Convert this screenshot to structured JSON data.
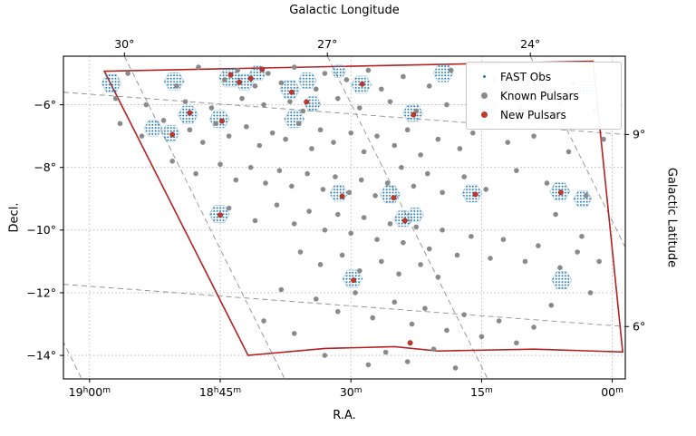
{
  "figure": {
    "top_axis_label": "Galactic Longitude",
    "right_axis_label": "Galactic Latitude",
    "x_axis_label": "R.A.",
    "y_axis_label": "Decl."
  },
  "chart_data": {
    "type": "scatter",
    "title": "",
    "xlabel": "R.A.",
    "ylabel": "Decl.",
    "top_axis_label": "Galactic Longitude",
    "right_axis_label": "Galactic Latitude",
    "x_unit": "RA minutes relative to 18h00m, axis reversed (19h00m on left, 18h00m on right)",
    "y_unit": "Declination degrees",
    "xlim": [
      63,
      -1.5
    ],
    "ylim": [
      -14.75,
      -4.45
    ],
    "grid": "dotted equatorial grid plus dashed galactic coordinate grid",
    "legend_position": "upper right",
    "x_ticks": [
      {
        "value": 60,
        "label": "19h00m"
      },
      {
        "value": 45,
        "label": "18h45m"
      },
      {
        "value": 30,
        "label": "30m"
      },
      {
        "value": 15,
        "label": "15m"
      },
      {
        "value": 0,
        "label": "00m"
      }
    ],
    "y_ticks": [
      {
        "value": -6,
        "label": "−6°"
      },
      {
        "value": -8,
        "label": "−8°"
      },
      {
        "value": -10,
        "label": "−10°"
      },
      {
        "value": -12,
        "label": "−12°"
      },
      {
        "value": -14,
        "label": "−14°"
      }
    ],
    "top_ticks": [
      {
        "value": 56,
        "label": "30°"
      },
      {
        "value": 32.7,
        "label": "27°"
      },
      {
        "value": 9.4,
        "label": "24°"
      }
    ],
    "right_ticks": [
      {
        "value": -6.95,
        "label": "9°"
      },
      {
        "value": -13.08,
        "label": "6°"
      }
    ],
    "legend": [
      {
        "label": "FAST Obs",
        "color": "#1f77b4",
        "size": 3
      },
      {
        "label": "Known Pulsars",
        "color": "#8a8a8a",
        "size": 7
      },
      {
        "label": "New Pulsars",
        "color": "#c0392b",
        "size": 7
      }
    ],
    "colors": {
      "fast_obs": "#1f77b4",
      "known_pulsars": "#8a8a8a",
      "new_pulsars": "#c0392b",
      "survey_boundary": "#b22222",
      "equatorial_grid": "#b0b0b0",
      "galactic_grid": "#8f8f8f"
    },
    "galactic_longitude_lines": [
      {
        "l": 33,
        "p": [
          [
            79.3,
            -4.45
          ],
          [
            60.9,
            -14.75
          ]
        ]
      },
      {
        "l": 30,
        "p": [
          [
            56.0,
            -4.45
          ],
          [
            37.6,
            -14.75
          ]
        ]
      },
      {
        "l": 27,
        "p": [
          [
            32.7,
            -4.45
          ],
          [
            14.3,
            -14.75
          ]
        ]
      },
      {
        "l": 24,
        "p": [
          [
            9.4,
            -4.45
          ],
          [
            -9.0,
            -14.75
          ]
        ]
      }
    ],
    "galactic_latitude_lines": [
      {
        "b": 9,
        "p": [
          [
            63,
            -5.6
          ],
          [
            -1.5,
            -6.95
          ]
        ]
      },
      {
        "b": 6,
        "p": [
          [
            63,
            -11.73
          ],
          [
            -1.5,
            -13.08
          ]
        ]
      }
    ],
    "survey_boundary": [
      [
        58.3,
        -4.93
      ],
      [
        2.2,
        -4.61
      ],
      [
        -1.2,
        -13.89
      ],
      [
        9.0,
        -13.8
      ],
      [
        20.0,
        -13.86
      ],
      [
        25.0,
        -13.72
      ],
      [
        33.0,
        -13.78
      ],
      [
        41.8,
        -14.0
      ]
    ],
    "fast_obs": [
      [
        57.5,
        -5.31,
        11
      ],
      [
        50.3,
        -5.25,
        11
      ],
      [
        43.9,
        -5.13,
        12
      ],
      [
        42.2,
        -5.28,
        10
      ],
      [
        40.7,
        -4.99,
        9
      ],
      [
        37.0,
        -5.51,
        11
      ],
      [
        35.0,
        -5.22,
        10
      ],
      [
        31.4,
        -4.93,
        8
      ],
      [
        28.8,
        -5.36,
        11
      ],
      [
        19.4,
        -4.99,
        11
      ],
      [
        12.0,
        -5.34,
        9
      ],
      [
        2.9,
        -5.48,
        11
      ],
      [
        48.7,
        -6.32,
        11
      ],
      [
        45.1,
        -6.46,
        11
      ],
      [
        52.7,
        -6.75,
        10
      ],
      [
        50.7,
        -6.9,
        10
      ],
      [
        36.5,
        -6.46,
        11
      ],
      [
        34.4,
        -5.97,
        9
      ],
      [
        22.9,
        -6.26,
        11
      ],
      [
        14.1,
        -6.06,
        9
      ],
      [
        45.1,
        -9.49,
        11
      ],
      [
        31.4,
        -8.83,
        10
      ],
      [
        25.5,
        -8.86,
        11
      ],
      [
        16.1,
        -8.83,
        11
      ],
      [
        6.0,
        -8.77,
        11
      ],
      [
        3.4,
        -9.0,
        10
      ],
      [
        24.0,
        -9.64,
        10
      ],
      [
        22.6,
        -9.52,
        9
      ],
      [
        29.8,
        -11.55,
        11
      ],
      [
        5.8,
        -11.6,
        11
      ]
    ],
    "new_pulsars": [
      [
        43.8,
        -5.05
      ],
      [
        42.8,
        -5.28
      ],
      [
        41.5,
        -5.16
      ],
      [
        40.2,
        -4.87
      ],
      [
        36.8,
        -5.6
      ],
      [
        35.1,
        -5.91
      ],
      [
        28.7,
        -5.34
      ],
      [
        48.5,
        -6.26
      ],
      [
        44.8,
        -6.52
      ],
      [
        50.5,
        -6.95
      ],
      [
        22.8,
        -6.32
      ],
      [
        45.0,
        -9.52
      ],
      [
        31.0,
        -8.92
      ],
      [
        25.1,
        -8.97
      ],
      [
        15.7,
        -8.86
      ],
      [
        5.9,
        -8.8
      ],
      [
        23.8,
        -9.7
      ],
      [
        29.7,
        -11.6
      ],
      [
        23.2,
        -13.6
      ]
    ],
    "known_pulsars": [
      [
        55.6,
        -5.0
      ],
      [
        50.0,
        -5.4
      ],
      [
        47.5,
        -4.8
      ],
      [
        44.5,
        -5.2
      ],
      [
        43.0,
        -4.9
      ],
      [
        41.0,
        -5.4
      ],
      [
        39.5,
        -5.0
      ],
      [
        38.0,
        -5.3
      ],
      [
        36.5,
        -4.8
      ],
      [
        34.0,
        -5.5
      ],
      [
        33.0,
        -5.0
      ],
      [
        30.5,
        -5.2
      ],
      [
        28.0,
        -4.9
      ],
      [
        26.5,
        -5.5
      ],
      [
        24.0,
        -5.1
      ],
      [
        21.0,
        -5.4
      ],
      [
        18.5,
        -4.9
      ],
      [
        13.5,
        -5.2
      ],
      [
        8.0,
        -5.0
      ],
      [
        4.5,
        -5.3
      ],
      [
        57.0,
        -5.8
      ],
      [
        53.5,
        -6.0
      ],
      [
        49.0,
        -5.9
      ],
      [
        46.0,
        -6.1
      ],
      [
        42.5,
        -5.8
      ],
      [
        40.0,
        -6.0
      ],
      [
        37.0,
        -5.9
      ],
      [
        35.5,
        -6.2
      ],
      [
        31.5,
        -5.8
      ],
      [
        29.0,
        -6.1
      ],
      [
        25.5,
        -5.9
      ],
      [
        22.5,
        -6.2
      ],
      [
        19.0,
        -6.0
      ],
      [
        15.0,
        -5.8
      ],
      [
        10.5,
        -6.1
      ],
      [
        6.0,
        -5.9
      ],
      [
        2.0,
        -6.2
      ],
      [
        56.5,
        -6.6
      ],
      [
        54.0,
        -7.0
      ],
      [
        51.5,
        -6.5
      ],
      [
        48.5,
        -6.8
      ],
      [
        47.0,
        -7.2
      ],
      [
        45.5,
        -6.6
      ],
      [
        44.0,
        -7.0
      ],
      [
        42.0,
        -6.7
      ],
      [
        40.5,
        -7.3
      ],
      [
        39.0,
        -6.9
      ],
      [
        37.5,
        -7.1
      ],
      [
        36.0,
        -6.6
      ],
      [
        34.5,
        -7.4
      ],
      [
        33.5,
        -6.8
      ],
      [
        32.0,
        -7.2
      ],
      [
        30.0,
        -6.9
      ],
      [
        28.5,
        -7.5
      ],
      [
        27.0,
        -7.0
      ],
      [
        25.0,
        -7.3
      ],
      [
        23.5,
        -6.8
      ],
      [
        22.0,
        -7.6
      ],
      [
        20.0,
        -7.1
      ],
      [
        17.5,
        -7.4
      ],
      [
        16.0,
        -6.9
      ],
      [
        12.0,
        -7.2
      ],
      [
        9.0,
        -7.0
      ],
      [
        5.0,
        -7.5
      ],
      [
        1.0,
        -7.1
      ],
      [
        50.5,
        -7.8
      ],
      [
        47.8,
        -8.2
      ],
      [
        45.0,
        -7.9
      ],
      [
        43.2,
        -8.4
      ],
      [
        41.5,
        -8.0
      ],
      [
        39.8,
        -8.5
      ],
      [
        38.2,
        -8.1
      ],
      [
        36.8,
        -8.6
      ],
      [
        35.0,
        -8.2
      ],
      [
        33.2,
        -8.7
      ],
      [
        31.8,
        -8.3
      ],
      [
        30.2,
        -8.8
      ],
      [
        28.8,
        -8.4
      ],
      [
        27.2,
        -8.9
      ],
      [
        25.8,
        -8.5
      ],
      [
        24.2,
        -8.0
      ],
      [
        22.8,
        -8.6
      ],
      [
        21.2,
        -8.2
      ],
      [
        19.5,
        -8.8
      ],
      [
        17.0,
        -8.3
      ],
      [
        14.5,
        -8.7
      ],
      [
        11.0,
        -8.1
      ],
      [
        7.5,
        -8.5
      ],
      [
        3.0,
        -8.9
      ],
      [
        44.0,
        -9.3
      ],
      [
        41.0,
        -9.7
      ],
      [
        38.5,
        -9.2
      ],
      [
        36.5,
        -9.8
      ],
      [
        34.8,
        -9.4
      ],
      [
        33.0,
        -10.0
      ],
      [
        31.5,
        -9.5
      ],
      [
        30.0,
        -10.1
      ],
      [
        28.5,
        -9.6
      ],
      [
        27.0,
        -10.3
      ],
      [
        25.5,
        -9.8
      ],
      [
        24.0,
        -10.4
      ],
      [
        22.5,
        -9.9
      ],
      [
        21.0,
        -10.6
      ],
      [
        19.5,
        -10.0
      ],
      [
        17.8,
        -10.8
      ],
      [
        16.2,
        -10.2
      ],
      [
        14.0,
        -10.9
      ],
      [
        12.5,
        -10.3
      ],
      [
        10.0,
        -11.0
      ],
      [
        8.5,
        -10.5
      ],
      [
        6.5,
        -9.5
      ],
      [
        6.0,
        -11.2
      ],
      [
        4.0,
        -10.7
      ],
      [
        3.5,
        -10.2
      ],
      [
        1.5,
        -11.0
      ],
      [
        35.8,
        -10.7
      ],
      [
        33.5,
        -11.1
      ],
      [
        31.0,
        -10.8
      ],
      [
        29.0,
        -11.3
      ],
      [
        26.5,
        -11.0
      ],
      [
        24.5,
        -11.4
      ],
      [
        22.0,
        -11.1
      ],
      [
        20.0,
        -11.5
      ],
      [
        38.0,
        -11.9
      ],
      [
        34.0,
        -12.2
      ],
      [
        31.5,
        -12.6
      ],
      [
        29.5,
        -12.0
      ],
      [
        27.5,
        -12.8
      ],
      [
        25.0,
        -12.3
      ],
      [
        23.0,
        -13.0
      ],
      [
        21.5,
        -12.5
      ],
      [
        19.0,
        -13.2
      ],
      [
        17.0,
        -12.7
      ],
      [
        15.0,
        -13.4
      ],
      [
        13.0,
        -12.9
      ],
      [
        11.0,
        -13.6
      ],
      [
        9.0,
        -13.1
      ],
      [
        26.0,
        -13.9
      ],
      [
        23.5,
        -14.2
      ],
      [
        20.5,
        -13.8
      ],
      [
        36.5,
        -13.3
      ],
      [
        40.0,
        -12.9
      ],
      [
        2.5,
        -12.0
      ],
      [
        7.0,
        -12.4
      ],
      [
        28.0,
        -14.3
      ],
      [
        18.0,
        -14.4
      ],
      [
        33.0,
        -14.0
      ]
    ]
  }
}
